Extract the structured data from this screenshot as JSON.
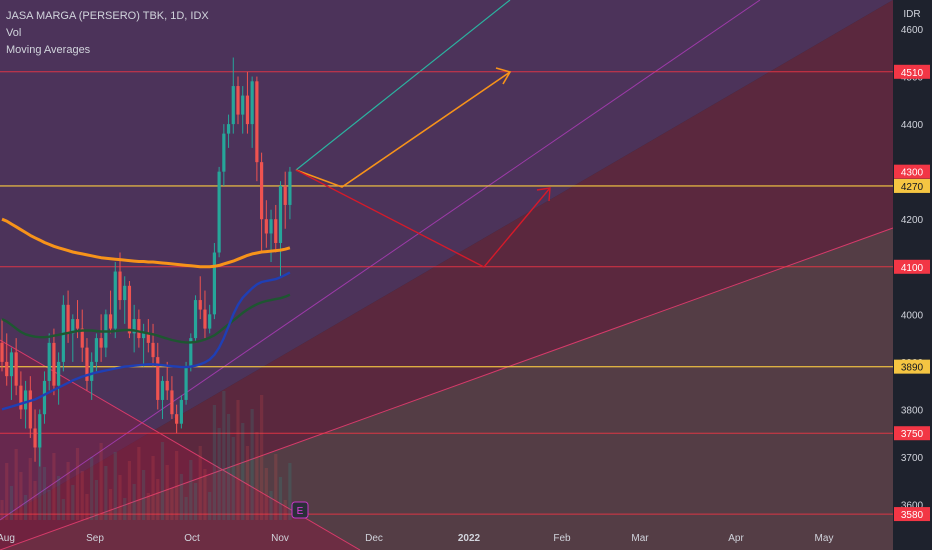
{
  "chart_data": {
    "type": "candlestick",
    "title": "JASA MARGA (PERSERO) TBK, 1D, IDX",
    "indicators": [
      "Vol",
      "Moving Averages"
    ],
    "currency": "IDR",
    "y_ticks": [
      3600,
      3700,
      3800,
      3900,
      4000,
      4100,
      4200,
      4300,
      4400,
      4500,
      4600
    ],
    "x_ticks": [
      "Aug",
      "Sep",
      "Oct",
      "Nov",
      "Dec",
      "2022",
      "Feb",
      "Mar",
      "Apr",
      "May"
    ],
    "ylim": [
      3580,
      4640
    ],
    "horizontal_levels": [
      {
        "value": 4510,
        "label": "4510",
        "color": "#f23645",
        "line": "#f23645"
      },
      {
        "value": 4300,
        "label": "4300",
        "color": "#f23645",
        "line": null
      },
      {
        "value": 4270,
        "label": "4270",
        "color": "#f5c542",
        "line": "#f5c542"
      },
      {
        "value": 4100,
        "label": "4100",
        "color": "#f23645",
        "line": "#f23645"
      },
      {
        "value": 3890,
        "label": "3890",
        "color": "#f5c542",
        "line": "#f5c542"
      },
      {
        "value": 3750,
        "label": "3750",
        "color": "#f23645",
        "line": "#f23645"
      },
      {
        "value": 3580,
        "label": "3580",
        "color": "#f23645",
        "line": "#f23645"
      }
    ],
    "candles": [
      [
        3940,
        3990,
        3880,
        3900
      ],
      [
        3900,
        3960,
        3850,
        3870
      ],
      [
        3870,
        3930,
        3820,
        3920
      ],
      [
        3920,
        3950,
        3830,
        3850
      ],
      [
        3850,
        3880,
        3780,
        3800
      ],
      [
        3800,
        3860,
        3760,
        3840
      ],
      [
        3840,
        3870,
        3740,
        3760
      ],
      [
        3760,
        3800,
        3690,
        3720
      ],
      [
        3720,
        3800,
        3680,
        3790
      ],
      [
        3790,
        3880,
        3770,
        3860
      ],
      [
        3860,
        3960,
        3840,
        3940
      ],
      [
        3940,
        3970,
        3830,
        3850
      ],
      [
        3850,
        3920,
        3810,
        3900
      ],
      [
        3900,
        4040,
        3880,
        4020
      ],
      [
        4020,
        4050,
        3940,
        3960
      ],
      [
        3960,
        4000,
        3900,
        3990
      ],
      [
        3990,
        4030,
        3950,
        3970
      ],
      [
        3970,
        4010,
        3900,
        3930
      ],
      [
        3930,
        3950,
        3840,
        3860
      ],
      [
        3860,
        3920,
        3820,
        3900
      ],
      [
        3900,
        3960,
        3880,
        3950
      ],
      [
        3950,
        4000,
        3900,
        3930
      ],
      [
        3930,
        4010,
        3910,
        4000
      ],
      [
        4000,
        4050,
        3960,
        3970
      ],
      [
        3970,
        4110,
        3950,
        4090
      ],
      [
        4090,
        4130,
        4010,
        4030
      ],
      [
        4030,
        4080,
        3980,
        4060
      ],
      [
        4060,
        4070,
        3950,
        3960
      ],
      [
        3960,
        4020,
        3920,
        3990
      ],
      [
        3990,
        4010,
        3930,
        3950
      ],
      [
        3950,
        3980,
        3890,
        3960
      ],
      [
        3960,
        3990,
        3920,
        3940
      ],
      [
        3940,
        3980,
        3890,
        3910
      ],
      [
        3910,
        3940,
        3800,
        3820
      ],
      [
        3820,
        3870,
        3780,
        3860
      ],
      [
        3860,
        3900,
        3820,
        3840
      ],
      [
        3840,
        3870,
        3780,
        3790
      ],
      [
        3790,
        3810,
        3750,
        3770
      ],
      [
        3770,
        3830,
        3760,
        3820
      ],
      [
        3820,
        3900,
        3810,
        3890
      ],
      [
        3890,
        3960,
        3880,
        3950
      ],
      [
        3950,
        4040,
        3940,
        4030
      ],
      [
        4030,
        4080,
        3990,
        4010
      ],
      [
        4010,
        4050,
        3950,
        3970
      ],
      [
        3970,
        4020,
        3960,
        4000
      ],
      [
        4000,
        4150,
        3990,
        4130
      ],
      [
        4130,
        4310,
        4120,
        4300
      ],
      [
        4300,
        4400,
        4270,
        4380
      ],
      [
        4380,
        4420,
        4350,
        4400
      ],
      [
        4400,
        4540,
        4380,
        4480
      ],
      [
        4480,
        4500,
        4400,
        4420
      ],
      [
        4420,
        4480,
        4380,
        4460
      ],
      [
        4460,
        4510,
        4380,
        4400
      ],
      [
        4400,
        4500,
        4350,
        4490
      ],
      [
        4490,
        4500,
        4280,
        4320
      ],
      [
        4320,
        4340,
        4130,
        4200
      ],
      [
        4200,
        4240,
        4140,
        4170
      ],
      [
        4170,
        4220,
        4110,
        4200
      ],
      [
        4200,
        4230,
        4130,
        4150
      ],
      [
        4150,
        4280,
        4080,
        4270
      ],
      [
        4270,
        4300,
        4180,
        4230
      ],
      [
        4230,
        4310,
        4200,
        4300
      ]
    ],
    "moving_averages": [
      {
        "color": "#f7931a",
        "values": [
          4200,
          4196,
          4190,
          4184,
          4178,
          4172,
          4166,
          4161,
          4156,
          4151,
          4147,
          4143,
          4140,
          4137,
          4134,
          4131,
          4129,
          4127,
          4125,
          4123,
          4121,
          4119,
          4118,
          4117,
          4116,
          4115,
          4114,
          4113,
          4112,
          4111,
          4111,
          4110,
          4110,
          4109,
          4108,
          4107,
          4106,
          4105,
          4104,
          4103,
          4102,
          4101,
          4100,
          4100,
          4100,
          4101,
          4103,
          4106,
          4109,
          4112,
          4116,
          4120,
          4124,
          4127,
          4129,
          4131,
          4132,
          4133,
          4134,
          4135,
          4137,
          4140
        ]
      },
      {
        "color": "#1e5631",
        "values": [
          3990,
          3985,
          3978,
          3970,
          3963,
          3958,
          3955,
          3953,
          3952,
          3952,
          3953,
          3955,
          3957,
          3959,
          3961,
          3963,
          3965,
          3966,
          3966,
          3966,
          3965,
          3964,
          3964,
          3964,
          3965,
          3966,
          3967,
          3967,
          3966,
          3964,
          3962,
          3960,
          3958,
          3955,
          3952,
          3949,
          3946,
          3944,
          3942,
          3941,
          3941,
          3942,
          3944,
          3947,
          3951,
          3956,
          3963,
          3971,
          3979,
          3987,
          3995,
          4003,
          4010,
          4016,
          4021,
          4025,
          4028,
          4030,
          4032,
          4034,
          4037,
          4041
        ]
      },
      {
        "color": "#1f3fb5",
        "values": [
          3800,
          3803,
          3806,
          3809,
          3812,
          3815,
          3818,
          3821,
          3826,
          3831,
          3836,
          3841,
          3846,
          3851,
          3856,
          3861,
          3865,
          3869,
          3872,
          3875,
          3878,
          3880,
          3882,
          3884,
          3886,
          3888,
          3890,
          3891,
          3892,
          3893,
          3894,
          3895,
          3895,
          3894,
          3893,
          3892,
          3891,
          3890,
          3889,
          3889,
          3890,
          3892,
          3895,
          3899,
          3905,
          3915,
          3930,
          3950,
          3975,
          4000,
          4020,
          4035,
          4045,
          4055,
          4063,
          4068,
          4070,
          4072,
          4074,
          4078,
          4083,
          4088
        ]
      }
    ],
    "volume_max": 5
  }
}
